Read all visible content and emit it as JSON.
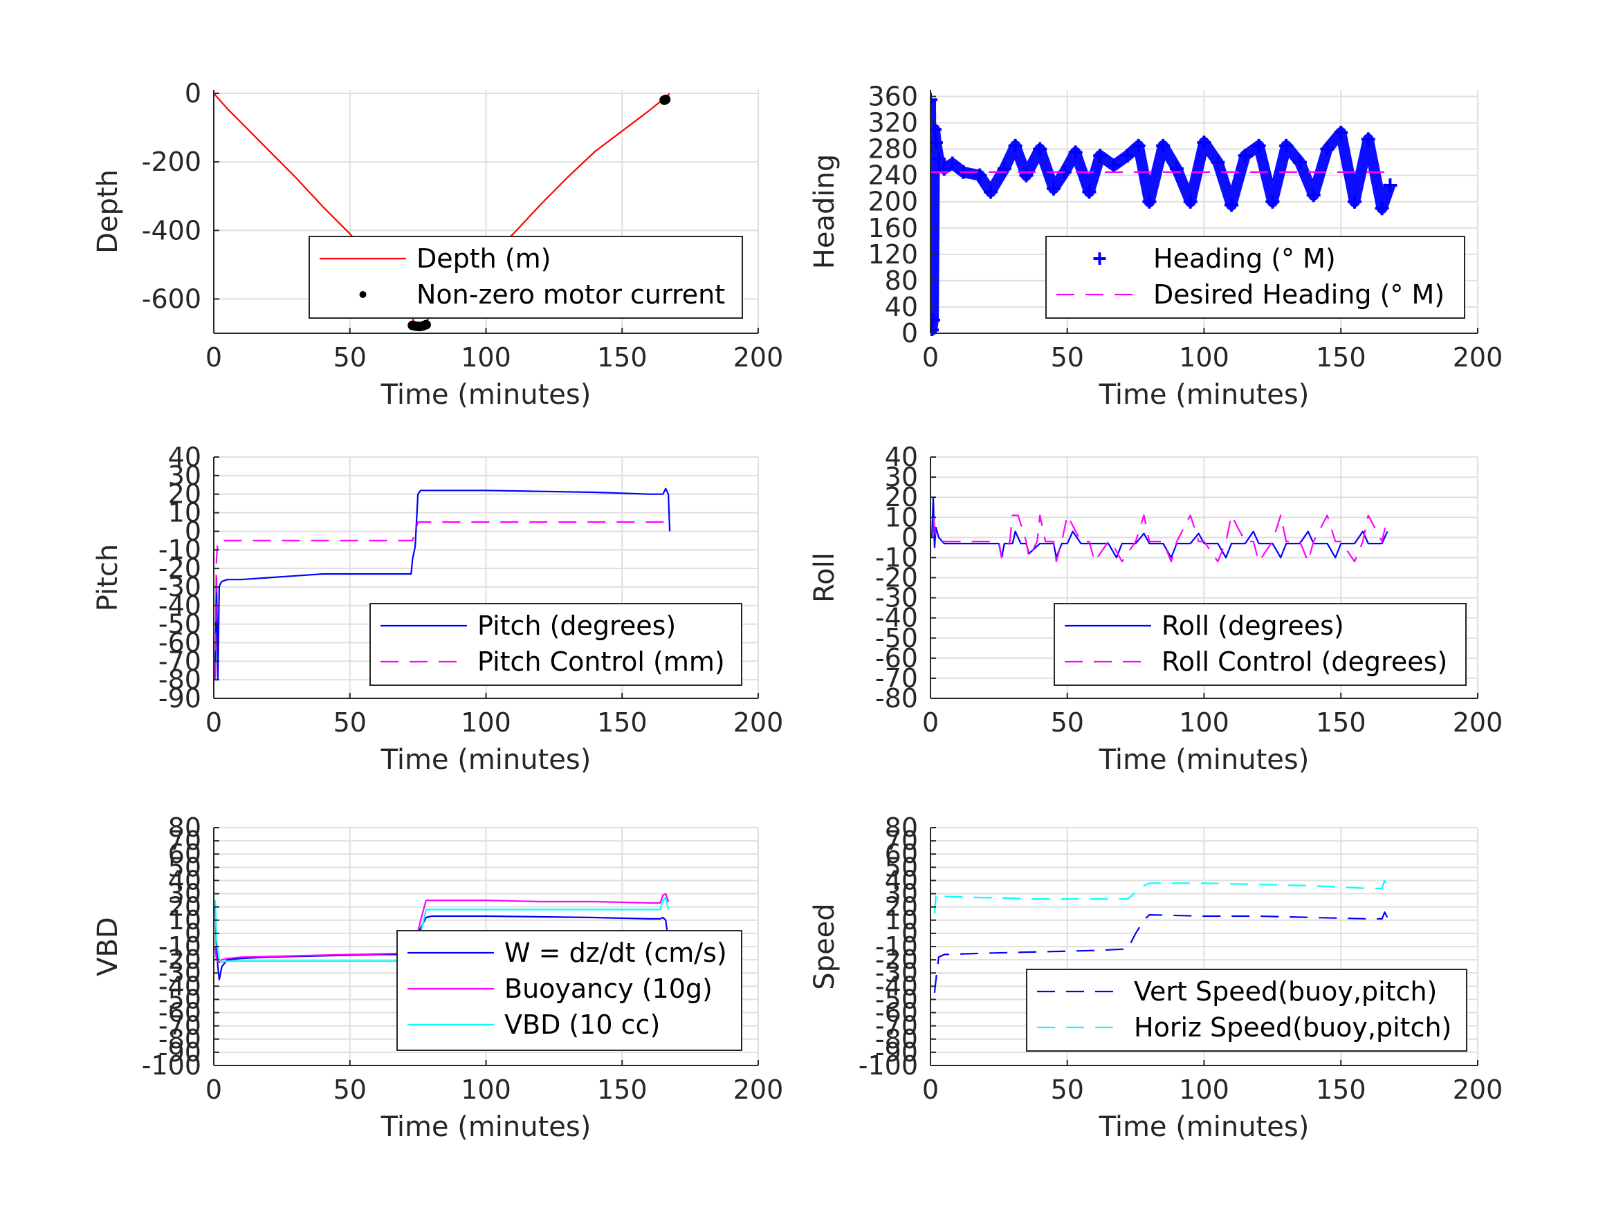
{
  "chart_data": [
    {
      "type": "line",
      "xlabel": "Time (minutes)",
      "ylabel": "Depth",
      "xlim": [
        0,
        200
      ],
      "ylim": [
        -700,
        10
      ],
      "xticks": [
        0,
        50,
        100,
        150,
        200
      ],
      "yticks": [
        0,
        -200,
        -400,
        -600
      ],
      "grid": true,
      "legend_position": "bottom-right",
      "series": [
        {
          "name": "Depth (m)",
          "style": "solid",
          "marker": "none",
          "color": "#ff0000",
          "x": [
            0,
            5,
            10,
            20,
            30,
            40,
            50,
            60,
            70,
            74,
            76,
            80,
            90,
            100,
            110,
            120,
            130,
            140,
            150,
            160,
            166,
            167.5
          ],
          "y": [
            0,
            -45,
            -85,
            -165,
            -245,
            -330,
            -410,
            -500,
            -600,
            -675,
            -678,
            -650,
            -575,
            -490,
            -410,
            -325,
            -245,
            -170,
            -110,
            -50,
            -12,
            0
          ]
        },
        {
          "name": "Non-zero motor current",
          "style": "none",
          "marker": "dot",
          "color": "#000000",
          "x": [
            73,
            74,
            75,
            76,
            77,
            78,
            165.5,
            166
          ],
          "y": [
            -677,
            -679,
            -680,
            -680,
            -678,
            -675,
            -20,
            -18
          ]
        }
      ]
    },
    {
      "type": "line",
      "xlabel": "Time (minutes)",
      "ylabel": "Heading",
      "xlim": [
        0,
        200
      ],
      "ylim": [
        0,
        370
      ],
      "xticks": [
        0,
        50,
        100,
        150,
        200
      ],
      "yticks": [
        0,
        40,
        80,
        120,
        160,
        200,
        240,
        280,
        320,
        360
      ],
      "grid": true,
      "legend_position": "bottom-right",
      "series": [
        {
          "name": "Heading (° M)",
          "style": "none",
          "marker": "plus",
          "color": "#0000ff",
          "x": [
            0,
            0.5,
            1,
            1.5,
            2,
            3,
            5,
            8,
            12,
            18,
            22,
            27,
            31,
            35,
            40,
            45,
            49,
            53,
            58,
            62,
            67,
            72,
            76,
            80,
            85,
            90,
            95,
            100,
            105,
            110,
            115,
            120,
            125,
            130,
            135,
            140,
            145,
            150,
            155,
            160,
            165,
            168
          ],
          "y": [
            355,
            5,
            20,
            310,
            290,
            265,
            250,
            258,
            245,
            240,
            215,
            250,
            285,
            240,
            280,
            220,
            245,
            275,
            215,
            270,
            255,
            270,
            285,
            200,
            285,
            250,
            200,
            290,
            260,
            195,
            270,
            285,
            200,
            285,
            260,
            210,
            280,
            305,
            200,
            295,
            190,
            225
          ]
        },
        {
          "name": "Desired Heading (° M)",
          "style": "dashed",
          "marker": "none",
          "color": "#ff00ff",
          "x": [
            0,
            167.5
          ],
          "y": [
            245,
            245
          ]
        }
      ]
    },
    {
      "type": "line",
      "xlabel": "Time (minutes)",
      "ylabel": "Pitch",
      "xlim": [
        0,
        200
      ],
      "ylim": [
        -90,
        40
      ],
      "xticks": [
        0,
        50,
        100,
        150,
        200
      ],
      "yticks": [
        40,
        30,
        20,
        10,
        0,
        -10,
        -20,
        -30,
        -40,
        -50,
        -60,
        -70,
        -80,
        -90
      ],
      "grid": true,
      "legend_position": "bottom-right",
      "series": [
        {
          "name": "Pitch (degrees)",
          "style": "solid",
          "marker": "none",
          "color": "#0000ff",
          "x": [
            0.5,
            1,
            1.5,
            2,
            2.5,
            3,
            5,
            10,
            20,
            30,
            40,
            50,
            60,
            70,
            72.5,
            73,
            74,
            75,
            76,
            80,
            100,
            120,
            140,
            160,
            165,
            166,
            167,
            167.5
          ],
          "y": [
            -80,
            -25,
            -80,
            -30,
            -28,
            -27,
            -26,
            -26,
            -25,
            -24,
            -23,
            -23,
            -23,
            -23,
            -23,
            -15,
            -8,
            20,
            22,
            22,
            22,
            21.5,
            21,
            20,
            20,
            23,
            20,
            0
          ]
        },
        {
          "name": "Pitch Control (mm)",
          "style": "dashed",
          "marker": "none",
          "color": "#ff00ff",
          "x": [
            0.5,
            1,
            1.5,
            2,
            73,
            74,
            75,
            165,
            166,
            167
          ],
          "y": [
            -80,
            -15,
            -5,
            -5,
            -5,
            0,
            5,
            5,
            6,
            6
          ]
        }
      ]
    },
    {
      "type": "line",
      "xlabel": "Time (minutes)",
      "ylabel": "Roll",
      "xlim": [
        0,
        200
      ],
      "ylim": [
        -80,
        40
      ],
      "xticks": [
        0,
        50,
        100,
        150,
        200
      ],
      "yticks": [
        40,
        30,
        20,
        10,
        0,
        -10,
        -20,
        -30,
        -40,
        -50,
        -60,
        -70,
        -80
      ],
      "grid": true,
      "legend_position": "bottom-right",
      "series": [
        {
          "name": "Roll (degrees)",
          "style": "solid",
          "marker": "none",
          "color": "#0000ff",
          "x": [
            0.5,
            1,
            1.5,
            2,
            3,
            5,
            10,
            20,
            25,
            26,
            27,
            30,
            31,
            33,
            35,
            36,
            40,
            45,
            46,
            48,
            50,
            52,
            55,
            58,
            60,
            65,
            68,
            70,
            75,
            78,
            80,
            85,
            88,
            90,
            95,
            98,
            100,
            105,
            108,
            110,
            115,
            118,
            120,
            125,
            128,
            130,
            135,
            138,
            140,
            145,
            148,
            150,
            155,
            158,
            160,
            165,
            167
          ],
          "y": [
            0,
            20,
            -5,
            5,
            0,
            -3,
            -3,
            -3,
            -3,
            -10,
            -3,
            -3,
            3,
            -3,
            -3,
            -8,
            -3,
            -3,
            -10,
            -3,
            -3,
            3,
            -3,
            -3,
            -3,
            -3,
            -10,
            -3,
            -3,
            2,
            -3,
            -3,
            -10,
            -3,
            -3,
            2,
            -3,
            -3,
            -10,
            -3,
            -3,
            3,
            -3,
            -3,
            -10,
            -3,
            -3,
            3,
            -3,
            -3,
            -10,
            -3,
            -3,
            3,
            -3,
            -3,
            3
          ]
        },
        {
          "name": "Roll Control (degrees)",
          "style": "dashed",
          "marker": "none",
          "color": "#ff00ff",
          "x": [
            1,
            2,
            3,
            10,
            20,
            25,
            26,
            29,
            30,
            32,
            35,
            36,
            39,
            40,
            42,
            45,
            46,
            48,
            50,
            55,
            58,
            60,
            65,
            66,
            70,
            75,
            78,
            80,
            85,
            88,
            90,
            95,
            98,
            100,
            105,
            108,
            110,
            115,
            118,
            120,
            125,
            128,
            130,
            135,
            138,
            140,
            145,
            148,
            150,
            155,
            158,
            160,
            165,
            167
          ],
          "y": [
            10,
            0,
            -2,
            -2,
            -2,
            -2,
            -10,
            -2,
            11,
            11,
            -2,
            -10,
            -2,
            11,
            -2,
            -2,
            -12,
            -2,
            11,
            -2,
            -2,
            -12,
            -2,
            -2,
            -12,
            -2,
            11,
            -2,
            -2,
            -12,
            -2,
            11,
            -2,
            -2,
            -12,
            -2,
            11,
            -2,
            -2,
            -12,
            -2,
            11,
            -2,
            -2,
            -12,
            -2,
            11,
            -2,
            -2,
            -12,
            -2,
            11,
            -2,
            10
          ]
        }
      ]
    },
    {
      "type": "line",
      "xlabel": "Time (minutes)",
      "ylabel": "VBD",
      "xlim": [
        0,
        200
      ],
      "ylim": [
        -100,
        80
      ],
      "xticks": [
        0,
        50,
        100,
        150,
        200
      ],
      "yticks": [
        80,
        70,
        60,
        50,
        40,
        30,
        20,
        10,
        0,
        -10,
        -20,
        -30,
        -40,
        -50,
        -60,
        -70,
        -80,
        -90,
        -100
      ],
      "grid": true,
      "legend_position": "bottom-right",
      "series": [
        {
          "name": "W = dz/dt (cm/s)",
          "style": "solid",
          "marker": "none",
          "color": "#0000ff",
          "x": [
            0.5,
            1,
            1.5,
            2,
            3,
            5,
            10,
            20,
            40,
            60,
            72,
            73,
            75,
            78,
            80,
            100,
            120,
            140,
            160,
            164,
            165,
            166,
            167
          ],
          "y": [
            20,
            -10,
            -25,
            -35,
            -25,
            -20,
            -19,
            -18,
            -17,
            -16,
            -16,
            -15,
            0,
            12,
            13,
            13,
            12.5,
            12,
            11,
            11,
            12,
            10,
            -5
          ]
        },
        {
          "name": "Buoyancy (10g)",
          "style": "solid",
          "marker": "none",
          "color": "#ff00ff",
          "x": [
            0.5,
            1,
            2,
            3,
            5,
            10,
            30,
            50,
            72,
            73,
            76,
            78,
            80,
            100,
            120,
            140,
            160,
            164,
            165,
            166,
            167
          ],
          "y": [
            -10,
            -20,
            -22,
            -20,
            -19,
            -18,
            -17,
            -16,
            -15,
            -15,
            10,
            25,
            25,
            25,
            24,
            24,
            23,
            23,
            29,
            30,
            24
          ]
        },
        {
          "name": "VBD (10 cc)",
          "style": "solid",
          "marker": "none",
          "color": "#00ffff",
          "x": [
            0.5,
            1,
            2,
            3,
            5,
            10,
            30,
            50,
            72,
            73,
            76,
            78,
            80,
            100,
            120,
            140,
            160,
            164,
            165,
            166,
            167
          ],
          "y": [
            25,
            -5,
            -20,
            -22,
            -21,
            -21,
            -21,
            -21,
            -21,
            -21,
            0,
            18,
            18,
            18,
            18,
            18,
            18,
            18,
            25,
            27,
            18
          ]
        }
      ]
    },
    {
      "type": "line",
      "xlabel": "Time (minutes)",
      "ylabel": "Speed",
      "xlim": [
        0,
        200
      ],
      "ylim": [
        -100,
        80
      ],
      "xticks": [
        0,
        50,
        100,
        150,
        200
      ],
      "yticks": [
        80,
        70,
        60,
        50,
        40,
        30,
        20,
        10,
        0,
        -10,
        -20,
        -30,
        -40,
        -50,
        -60,
        -70,
        -80,
        -90,
        -100
      ],
      "grid": true,
      "legend_position": "bottom-right",
      "series": [
        {
          "name": "Vert Speed(buoy,pitch)",
          "style": "dashed",
          "marker": "none",
          "color": "#0000ff",
          "x": [
            1.5,
            2,
            3,
            5,
            20,
            40,
            60,
            70,
            72,
            75,
            78,
            80,
            100,
            120,
            140,
            160,
            165,
            166,
            167
          ],
          "y": [
            -45,
            -35,
            -18,
            -16,
            -15,
            -14,
            -13,
            -12,
            -12,
            0,
            10,
            14,
            13,
            13,
            12,
            11,
            11,
            16,
            12
          ]
        },
        {
          "name": "Horiz Speed(buoy,pitch)",
          "style": "dashed",
          "marker": "none",
          "color": "#00ffff",
          "x": [
            1.5,
            2,
            3,
            5,
            20,
            40,
            60,
            70,
            72,
            75,
            78,
            80,
            100,
            120,
            140,
            160,
            165,
            166,
            167
          ],
          "y": [
            15,
            30,
            29,
            28,
            27,
            26,
            26,
            26,
            26,
            31,
            36,
            38,
            38,
            37,
            36,
            34,
            34,
            40,
            35
          ]
        }
      ]
    }
  ]
}
